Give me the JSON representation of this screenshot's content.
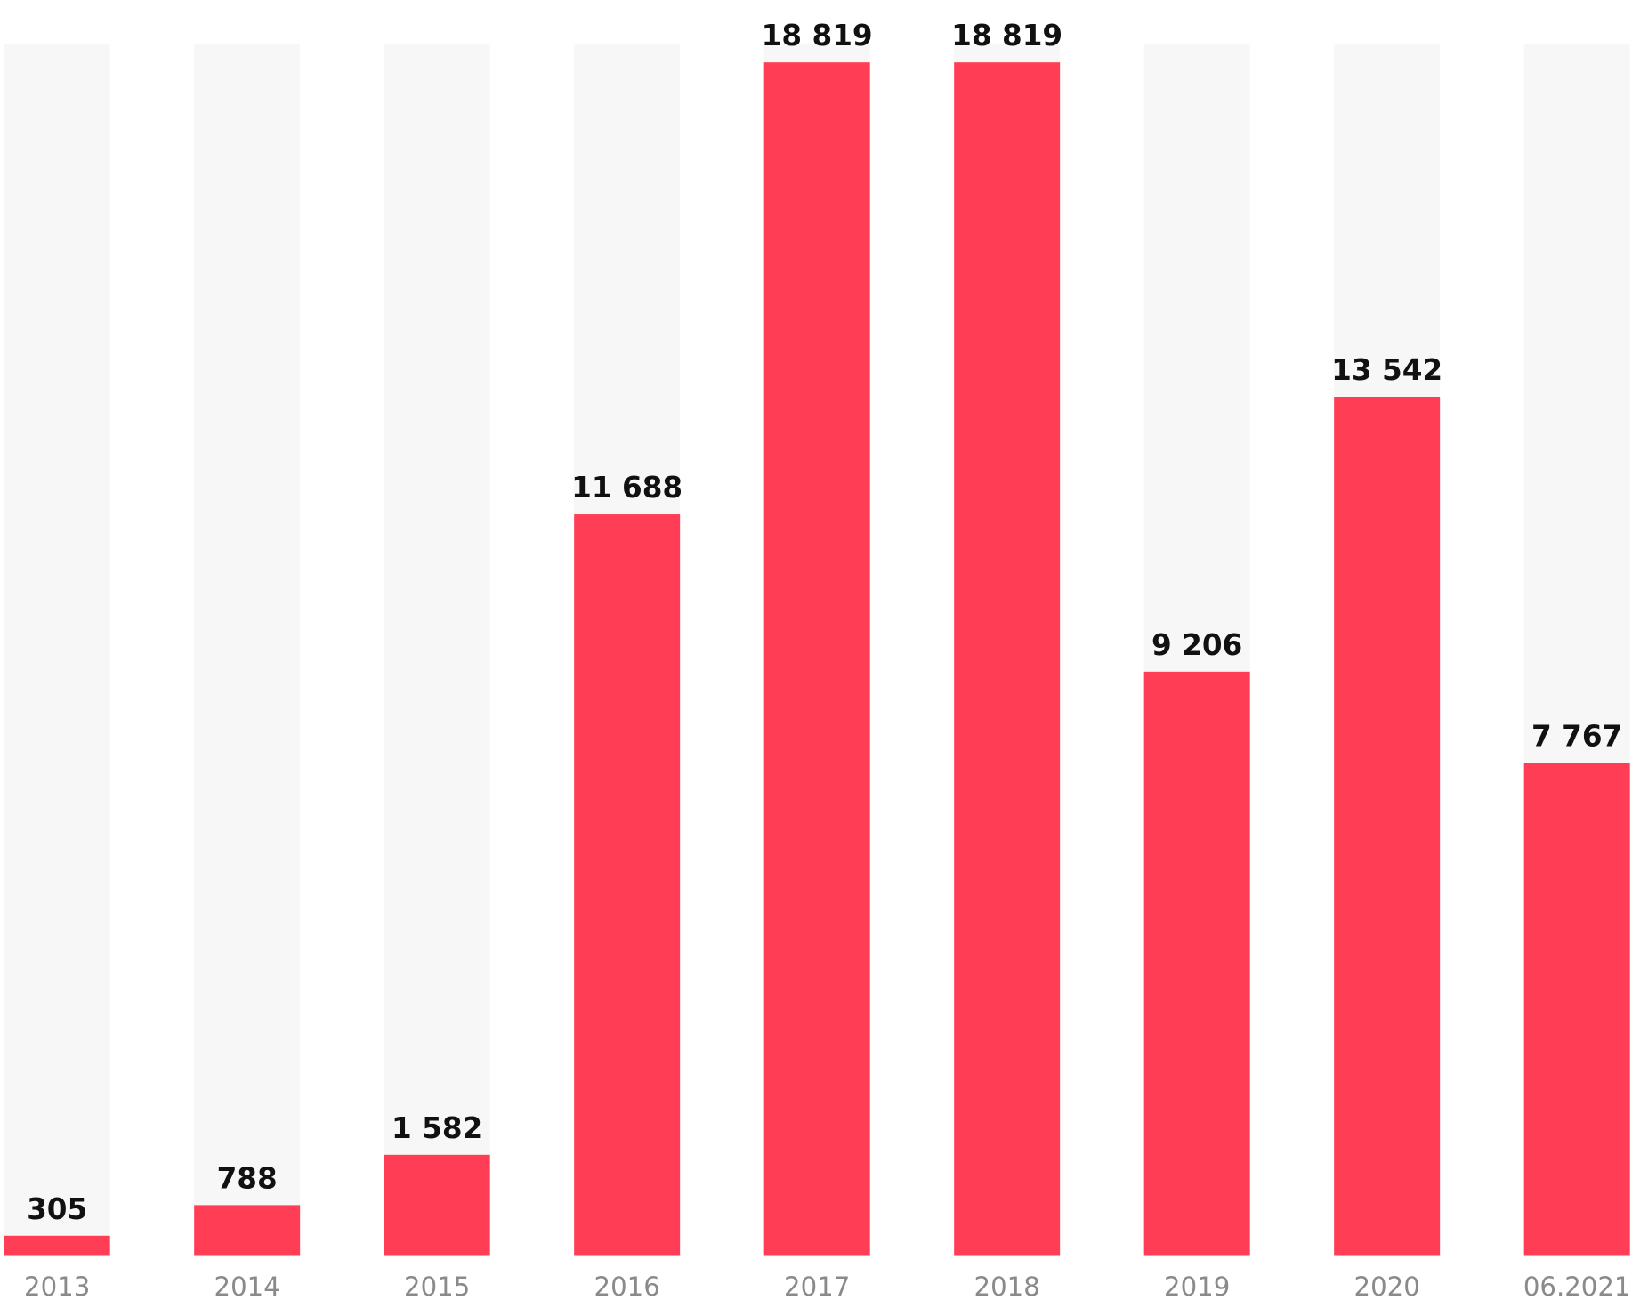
{
  "chart_data": {
    "type": "bar",
    "categories": [
      "2013",
      "2014",
      "2015",
      "2016",
      "2017",
      "2018",
      "2019",
      "2020",
      "06.2021"
    ],
    "values": [
      305,
      788,
      1582,
      11688,
      18819,
      18819,
      9206,
      13542,
      7767
    ],
    "value_labels": [
      "305",
      "788",
      "1 582",
      "11 688",
      "18 819",
      "18 819",
      "9 206",
      "13 542",
      "7 767"
    ],
    "color": "#ff3d55",
    "ylim": [
      0,
      19100
    ]
  }
}
